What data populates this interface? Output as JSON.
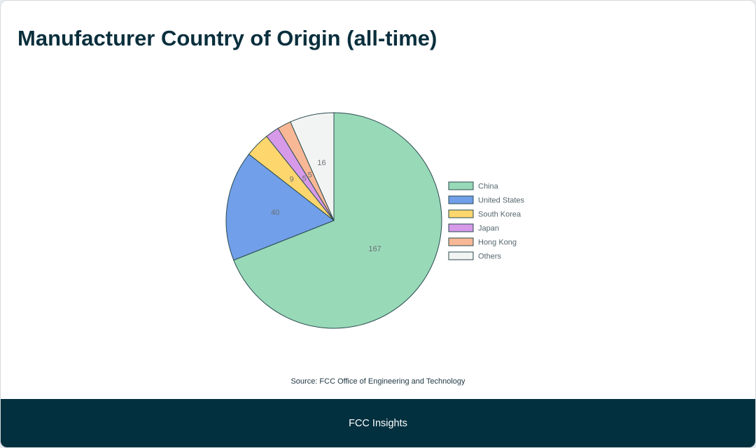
{
  "title": "Manufacturer Country of Origin (all-time)",
  "source": "Source: FCC Office of Engineering and Technology",
  "footer": {
    "brand": "FCC Insights"
  },
  "chart_data": {
    "type": "pie",
    "title": "",
    "legend_position": "right",
    "slices": [
      {
        "label": "China",
        "value": 167,
        "color": "#98d9b8"
      },
      {
        "label": "United States",
        "value": 40,
        "color": "#719fe9"
      },
      {
        "label": "South Korea",
        "value": 9,
        "color": "#fdd76e"
      },
      {
        "label": "Japan",
        "value": 5,
        "color": "#d69ae9"
      },
      {
        "label": "Hong Kong",
        "value": 5,
        "color": "#f9b895"
      },
      {
        "label": "Others",
        "value": 16,
        "color": "#f2f4f4"
      }
    ]
  }
}
